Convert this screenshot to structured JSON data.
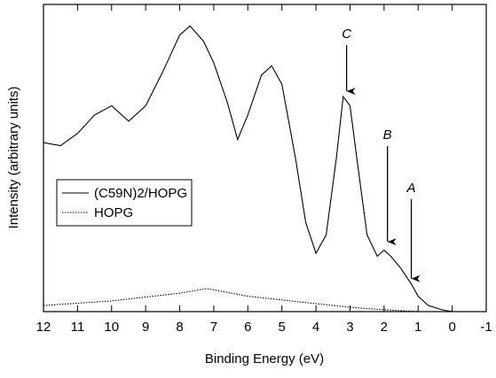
{
  "chart_data": {
    "type": "line",
    "xlabel": "Binding Energy (eV)",
    "ylabel": "Intensity (arbitrary units)",
    "xlim": [
      12,
      -1
    ],
    "xticks": [
      12,
      11,
      10,
      9,
      8,
      7,
      6,
      5,
      4,
      3,
      2,
      1,
      0,
      -1
    ],
    "ylim": [
      0,
      100
    ],
    "legend": "center left",
    "series": [
      {
        "name": "(C59N)2/HOPG",
        "color": "#000000",
        "dash": "solid",
        "x": [
          12,
          11.5,
          11,
          10.5,
          10,
          9.5,
          9,
          8.5,
          8,
          7.7,
          7.3,
          7,
          6.6,
          6.3,
          6,
          5.6,
          5.3,
          5,
          4.6,
          4.3,
          4,
          3.7,
          3.4,
          3.2,
          3,
          2.8,
          2.5,
          2.2,
          2,
          1.8,
          1.5,
          1.2,
          1,
          0.7,
          0.3,
          0
        ],
        "values": [
          55,
          54,
          58,
          64,
          67,
          62,
          67,
          78,
          90,
          93,
          88,
          81,
          68,
          56,
          64,
          77,
          80,
          74,
          50,
          29,
          19,
          25,
          50,
          70,
          67,
          50,
          25,
          18,
          20,
          18,
          14,
          9,
          5,
          2,
          0.6,
          0
        ]
      },
      {
        "name": "HOPG",
        "color": "#000000",
        "dash": "dotted",
        "x": [
          12,
          10,
          8,
          7.2,
          6,
          4,
          3,
          2,
          1,
          0
        ],
        "values": [
          2,
          3.5,
          6,
          7.5,
          5,
          2.6,
          1.4,
          0.6,
          0,
          0
        ]
      }
    ],
    "annotations": [
      {
        "text": "C",
        "x": 3.1,
        "y": 70
      },
      {
        "text": "B",
        "x": 1.9,
        "y": 21
      },
      {
        "text": "A",
        "x": 1.2,
        "y": 9
      }
    ]
  }
}
